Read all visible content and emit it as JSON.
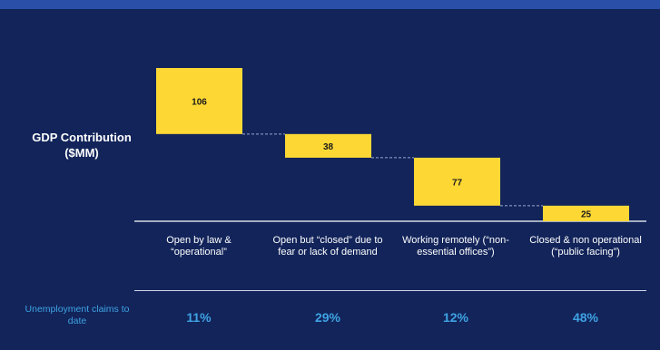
{
  "chart_data": {
    "type": "bar",
    "variant": "waterfall",
    "ylabel": "GDP Contribution\n($MM)",
    "categories": [
      "Open by law & “operational”",
      "Open but “closed” due to fear or lack of demand",
      "Working remotely (“non-essential offices”)",
      "Closed & non operational (“public facing”)"
    ],
    "values": [
      106,
      38,
      77,
      25
    ],
    "colors": {
      "bar": "#fdd835",
      "background": "#12245a",
      "connector": "#9aa9cf",
      "axis": "#ffffff"
    }
  },
  "unemployment": {
    "label": "Unemployment claims to date",
    "values": [
      "11%",
      "29%",
      "12%",
      "48%"
    ]
  }
}
